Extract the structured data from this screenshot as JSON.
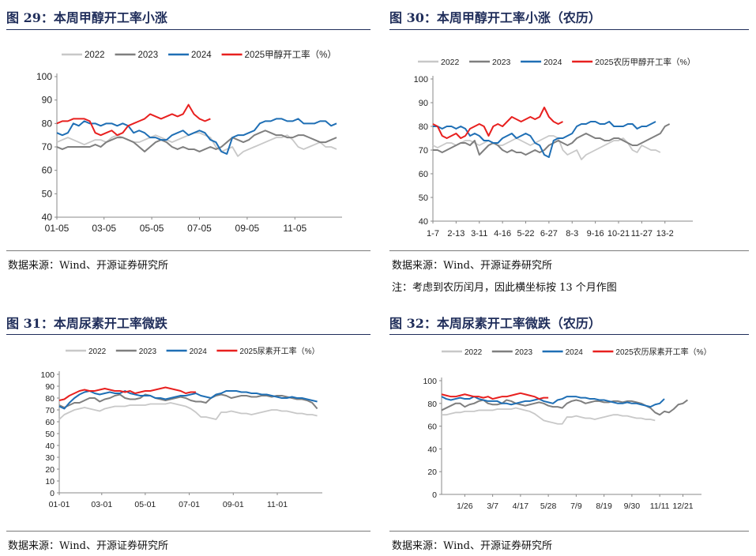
{
  "source_text": "数据来源：Wind、开源证券研究所",
  "panels": [
    {
      "title": "图 29：本周甲醇开工率小涨",
      "source": "数据来源：Wind、开源证券研究所",
      "note": "",
      "legend": [
        "2022",
        "2023",
        "2024",
        "2025甲醇开工率（%）"
      ]
    },
    {
      "title": "图 30：本周甲醇开工率小涨（农历）",
      "source": "数据来源：Wind、开源证券研究所",
      "note": "注：考虑到农历闰月，因此横坐标按 13 个月作图",
      "legend": [
        "2022",
        "2023",
        "2024",
        "2025农历甲醇开工率（%）"
      ]
    },
    {
      "title": "图 31：本周尿素开工率微跌",
      "source": "数据来源：Wind、开源证券研究所",
      "note": "",
      "legend": [
        "2022",
        "2023",
        "2024",
        "2025尿素开工率（%）"
      ]
    },
    {
      "title": "图 32：本周尿素开工率微跌（农历）",
      "source": "数据来源：Wind、开源证券研究所",
      "note": "",
      "legend": [
        "2022",
        "2023",
        "2024",
        "2025农历尿素开工率（%）"
      ]
    }
  ],
  "series_colors": {
    "2022": "#c8c8c8",
    "2023": "#7f7f7f",
    "2024": "#1f6fb5",
    "2025": "#e8201f"
  },
  "chart_data": [
    {
      "type": "line",
      "title": "",
      "xlabel": "",
      "ylabel": "",
      "ylim": [
        40,
        100
      ],
      "yticks": [
        40,
        50,
        60,
        70,
        80,
        90,
        100
      ],
      "xlim": [
        0,
        52
      ],
      "xtick_labels": [
        "01-05",
        "03-05",
        "05-05",
        "07-05",
        "09-05",
        "11-05"
      ],
      "xtick_pos": [
        0,
        8.6,
        17.3,
        26,
        34.7,
        43.4
      ],
      "legend_position": "top",
      "series": [
        {
          "name": "2022",
          "values": [
            72,
            73,
            74,
            73,
            72,
            71,
            72,
            73,
            73,
            72,
            74,
            75,
            74,
            73,
            72,
            72,
            73,
            74,
            75,
            74,
            73,
            72,
            73,
            74,
            75,
            76,
            76,
            75,
            74,
            70,
            68,
            69,
            70,
            66,
            68,
            69,
            70,
            71,
            72,
            73,
            74,
            74,
            75,
            73,
            70,
            69,
            70,
            71,
            72,
            70,
            70,
            69
          ]
        },
        {
          "name": "2023",
          "values": [
            70,
            69,
            70,
            70,
            70,
            70,
            70,
            71,
            70,
            72,
            73,
            74,
            74,
            73,
            72,
            70,
            68,
            70,
            72,
            73,
            72,
            70,
            69,
            70,
            69,
            69,
            68,
            69,
            70,
            69,
            70,
            72,
            74,
            73,
            72,
            73,
            75,
            76,
            77,
            76,
            75,
            75,
            74,
            74,
            75,
            75,
            74,
            73,
            72,
            72,
            73,
            74
          ]
        },
        {
          "name": "2024",
          "values": [
            76,
            75,
            76,
            80,
            79,
            81,
            80,
            80,
            79,
            80,
            80,
            79,
            80,
            79,
            76,
            77,
            76,
            74,
            74,
            73,
            73,
            75,
            76,
            77,
            75,
            76,
            77,
            76,
            73,
            72,
            68,
            67,
            74,
            75,
            75,
            76,
            77,
            80,
            81,
            81,
            82,
            82,
            81,
            81,
            82,
            80,
            80,
            80,
            81,
            81,
            79,
            80
          ]
        },
        {
          "name": "2025",
          "values": [
            80,
            81,
            81,
            82,
            82,
            82,
            81,
            76,
            75,
            76,
            77,
            75,
            76,
            79,
            80,
            81,
            82,
            84,
            83,
            82,
            83,
            84,
            83,
            84,
            88,
            84,
            82,
            81,
            82
          ]
        }
      ]
    },
    {
      "type": "line",
      "title": "",
      "xlabel": "",
      "ylabel": "",
      "ylim": [
        40,
        100
      ],
      "yticks": [
        40,
        50,
        60,
        70,
        80,
        90,
        100
      ],
      "xlim": [
        0,
        56
      ],
      "xtick_labels": [
        "1-7",
        "2-13",
        "3-11",
        "4-16",
        "5-22",
        "6-27",
        "8-3",
        "9-16",
        "10-21",
        "11-27",
        "13-2"
      ],
      "xtick_pos": [
        0,
        5,
        10,
        15,
        20,
        25,
        30,
        35,
        40,
        45,
        50
      ],
      "legend_position": "top",
      "series": [
        {
          "name": "2022",
          "values": [
            72,
            71,
            72,
            73,
            73,
            72,
            73,
            74,
            74,
            73,
            72,
            73,
            74,
            73,
            72,
            72,
            73,
            74,
            75,
            74,
            73,
            72,
            73,
            74,
            75,
            76,
            76,
            75,
            70,
            68,
            69,
            70,
            66,
            68,
            69,
            70,
            71,
            72,
            73,
            74,
            74,
            75,
            73,
            70,
            69,
            72,
            71,
            70,
            70,
            69
          ]
        },
        {
          "name": "2023",
          "values": [
            70,
            70,
            69,
            70,
            71,
            72,
            73,
            73,
            72,
            74,
            68,
            70,
            72,
            73,
            72,
            70,
            69,
            70,
            69,
            69,
            68,
            69,
            70,
            69,
            70,
            72,
            73,
            74,
            73,
            72,
            73,
            75,
            76,
            77,
            76,
            75,
            75,
            74,
            74,
            75,
            75,
            74,
            73,
            72,
            72,
            73,
            74,
            75,
            76,
            77,
            80,
            81
          ]
        },
        {
          "name": "2024",
          "values": [
            80,
            80,
            79,
            80,
            80,
            79,
            80,
            79,
            76,
            77,
            76,
            74,
            74,
            73,
            73,
            75,
            76,
            77,
            75,
            76,
            77,
            76,
            73,
            72,
            68,
            67,
            74,
            75,
            75,
            76,
            77,
            80,
            81,
            81,
            82,
            82,
            81,
            81,
            82,
            80,
            80,
            80,
            81,
            81,
            79,
            80,
            80,
            81,
            82
          ]
        },
        {
          "name": "2025",
          "values": [
            81,
            80,
            76,
            75,
            76,
            77,
            75,
            76,
            79,
            80,
            81,
            80,
            76,
            80,
            81,
            80,
            82,
            84,
            83,
            82,
            83,
            84,
            83,
            84,
            88,
            84,
            82,
            81,
            82
          ]
        }
      ]
    },
    {
      "type": "line",
      "title": "",
      "xlabel": "",
      "ylabel": "",
      "ylim": [
        0,
        100
      ],
      "yticks": [
        0,
        10,
        20,
        30,
        40,
        50,
        60,
        70,
        80,
        90,
        100
      ],
      "xlim": [
        0,
        52
      ],
      "xtick_labels": [
        "01-01",
        "03-01",
        "05-01",
        "07-01",
        "09-01",
        "11-01"
      ],
      "xtick_pos": [
        0,
        8.4,
        17,
        25.7,
        34.4,
        43.1
      ],
      "legend_position": "top",
      "series": [
        {
          "name": "2022",
          "values": [
            62,
            66,
            68,
            70,
            71,
            72,
            71,
            70,
            69,
            71,
            72,
            73,
            73,
            73,
            74,
            74,
            74,
            74,
            75,
            75,
            75,
            75,
            76,
            75,
            74,
            73,
            71,
            68,
            64,
            64,
            63,
            62,
            68,
            68,
            69,
            68,
            67,
            67,
            66,
            67,
            68,
            69,
            70,
            70,
            69,
            69,
            68,
            67,
            67,
            66,
            66,
            65
          ]
        },
        {
          "name": "2023",
          "values": [
            74,
            72,
            74,
            76,
            76,
            78,
            80,
            80,
            77,
            79,
            80,
            82,
            83,
            80,
            79,
            79,
            80,
            83,
            82,
            80,
            79,
            78,
            79,
            80,
            81,
            80,
            78,
            77,
            77,
            76,
            80,
            82,
            83,
            82,
            80,
            81,
            82,
            82,
            81,
            81,
            82,
            82,
            81,
            82,
            82,
            81,
            80,
            79,
            79,
            78,
            76,
            71
          ]
        },
        {
          "name": "2024",
          "values": [
            73,
            71,
            76,
            80,
            83,
            85,
            86,
            84,
            83,
            84,
            85,
            84,
            84,
            86,
            84,
            83,
            82,
            82,
            82,
            80,
            80,
            79,
            80,
            81,
            82,
            82,
            83,
            84,
            82,
            81,
            80,
            83,
            84,
            86,
            86,
            86,
            85,
            85,
            84,
            84,
            83,
            83,
            82,
            81,
            80,
            80,
            81,
            80,
            80,
            79,
            78,
            77
          ]
        },
        {
          "name": "2025",
          "values": [
            78,
            79,
            82,
            84,
            86,
            87,
            86,
            86,
            87,
            88,
            87,
            86,
            86,
            85,
            86,
            84,
            85,
            86,
            86,
            87,
            88,
            89,
            88,
            87,
            86,
            84,
            85,
            85
          ]
        }
      ]
    },
    {
      "type": "line",
      "title": "",
      "xlabel": "",
      "ylabel": "",
      "ylim": [
        0,
        100
      ],
      "yticks": [
        0,
        20,
        40,
        60,
        80,
        100
      ],
      "xlim": [
        0,
        56
      ],
      "xtick_labels": [
        "1/26",
        "3/7",
        "4/17",
        "5/28",
        "7/9",
        "8/19",
        "9/30",
        "11/11",
        "12/21"
      ],
      "xtick_pos": [
        5,
        11,
        17,
        23,
        29,
        35,
        41,
        47,
        52
      ],
      "legend_position": "top",
      "series": [
        {
          "name": "2022",
          "values": [
            70,
            70,
            71,
            72,
            72,
            73,
            73,
            73,
            74,
            74,
            74,
            74,
            75,
            75,
            75,
            75,
            76,
            75,
            74,
            73,
            71,
            68,
            65,
            64,
            63,
            62,
            62,
            68,
            68,
            69,
            68,
            67,
            67,
            66,
            67,
            68,
            69,
            70,
            70,
            69,
            69,
            68,
            67,
            67,
            66,
            66,
            65
          ]
        },
        {
          "name": "2023",
          "values": [
            74,
            76,
            78,
            80,
            80,
            77,
            79,
            80,
            82,
            83,
            80,
            79,
            79,
            80,
            83,
            82,
            80,
            79,
            78,
            79,
            80,
            81,
            80,
            78,
            77,
            77,
            76,
            80,
            82,
            83,
            82,
            80,
            81,
            82,
            82,
            81,
            81,
            82,
            82,
            81,
            82,
            82,
            81,
            80,
            78,
            76,
            72,
            70,
            73,
            72,
            75,
            79,
            80,
            83
          ]
        },
        {
          "name": "2024",
          "values": [
            86,
            84,
            83,
            84,
            85,
            84,
            84,
            86,
            84,
            83,
            82,
            82,
            82,
            80,
            80,
            79,
            80,
            81,
            82,
            82,
            83,
            84,
            82,
            81,
            80,
            83,
            84,
            86,
            86,
            86,
            85,
            85,
            84,
            84,
            83,
            83,
            82,
            81,
            80,
            80,
            81,
            80,
            80,
            79,
            78,
            77,
            79,
            80,
            84
          ]
        },
        {
          "name": "2025",
          "values": [
            88,
            87,
            86,
            86,
            87,
            88,
            87,
            86,
            86,
            85,
            86,
            84,
            85,
            86,
            86,
            87,
            88,
            89,
            88,
            87,
            86,
            84,
            85,
            85
          ]
        }
      ]
    }
  ]
}
